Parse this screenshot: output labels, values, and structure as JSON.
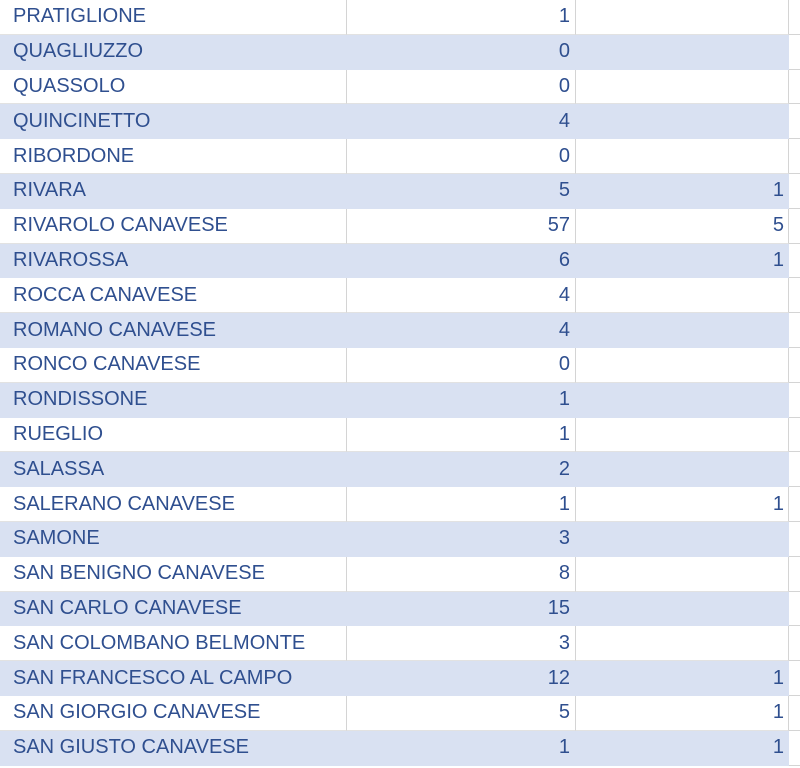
{
  "colors": {
    "band": "#d9e1f2",
    "text": "#2f4f8f",
    "grid": "#d4d4d4"
  },
  "rows": [
    {
      "name": "PRATIGLIONE",
      "a": "1",
      "b": ""
    },
    {
      "name": "QUAGLIUZZO",
      "a": "0",
      "b": ""
    },
    {
      "name": "QUASSOLO",
      "a": "0",
      "b": ""
    },
    {
      "name": "QUINCINETTO",
      "a": "4",
      "b": ""
    },
    {
      "name": "RIBORDONE",
      "a": "0",
      "b": ""
    },
    {
      "name": "RIVARA",
      "a": "5",
      "b": "1"
    },
    {
      "name": "RIVAROLO CANAVESE",
      "a": "57",
      "b": "5"
    },
    {
      "name": "RIVAROSSA",
      "a": "6",
      "b": "1"
    },
    {
      "name": "ROCCA CANAVESE",
      "a": "4",
      "b": ""
    },
    {
      "name": "ROMANO CANAVESE",
      "a": "4",
      "b": ""
    },
    {
      "name": "RONCO CANAVESE",
      "a": "0",
      "b": ""
    },
    {
      "name": "RONDISSONE",
      "a": "1",
      "b": ""
    },
    {
      "name": "RUEGLIO",
      "a": "1",
      "b": ""
    },
    {
      "name": "SALASSA",
      "a": "2",
      "b": ""
    },
    {
      "name": "SALERANO CANAVESE",
      "a": "1",
      "b": "1"
    },
    {
      "name": "SAMONE",
      "a": "3",
      "b": ""
    },
    {
      "name": "SAN BENIGNO CANAVESE",
      "a": "8",
      "b": ""
    },
    {
      "name": "SAN CARLO CANAVESE",
      "a": "15",
      "b": ""
    },
    {
      "name": "SAN COLOMBANO BELMONTE",
      "a": "3",
      "b": ""
    },
    {
      "name": "SAN FRANCESCO AL CAMPO",
      "a": "12",
      "b": "1"
    },
    {
      "name": "SAN GIORGIO CANAVESE",
      "a": "5",
      "b": "1"
    },
    {
      "name": "SAN GIUSTO CANAVESE",
      "a": "1",
      "b": "1"
    }
  ]
}
